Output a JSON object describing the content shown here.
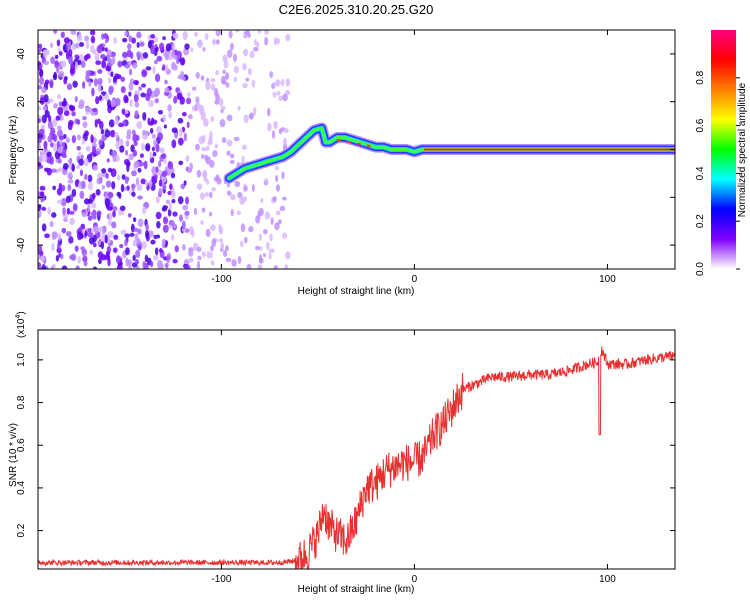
{
  "title": "C2E6.2025.310.20.25.G20",
  "chart_data": [
    {
      "type": "heatmap",
      "xlabel": "Height of straight line (km)",
      "ylabel": "Frequency (Hz)",
      "xlim": [
        -195,
        135
      ],
      "ylim": [
        -50,
        50
      ],
      "xticks": [
        -100,
        0,
        100
      ],
      "xtick_labels": [
        "-100",
        "0",
        "100"
      ],
      "yticks": [
        -40,
        -20,
        0,
        20,
        40
      ],
      "ytick_labels": [
        "-40",
        "-20",
        "0",
        "20",
        "40"
      ],
      "colorbar": {
        "label": "Normalized spectral amplitude",
        "range": [
          0,
          1
        ],
        "ticks": [
          0.0,
          0.2,
          0.4,
          0.6,
          0.8
        ],
        "tick_labels": [
          "0.0",
          "0.2",
          "0.4",
          "0.6",
          "0.8"
        ],
        "colors": [
          "#ffffff",
          "#8000ff",
          "#0000ff",
          "#00ffff",
          "#00ff00",
          "#ffff00",
          "#ff8000",
          "#ff0000",
          "#ff0080"
        ]
      },
      "ridge": {
        "name": "Doppler trace",
        "x": [
          -96,
          -92,
          -88,
          -84,
          -80,
          -76,
          -72,
          -68,
          -64,
          -60,
          -56,
          -52,
          -48,
          -46,
          -44,
          -42,
          -40,
          -36,
          -32,
          -28,
          -24,
          -20,
          -16,
          -12,
          -8,
          -4,
          0,
          4,
          10,
          20,
          40,
          60,
          80,
          100,
          120,
          135
        ],
        "y": [
          -12,
          -10,
          -8,
          -7,
          -6,
          -5,
          -4,
          -3,
          -1,
          2,
          5,
          8,
          9,
          3,
          3,
          4,
          5,
          5,
          4,
          3,
          2,
          1,
          1,
          0,
          0,
          0,
          -1,
          0,
          0,
          0,
          0,
          0,
          0,
          0,
          0,
          0
        ]
      }
    },
    {
      "type": "line",
      "xlabel": "Height of straight line (km)",
      "ylabel": "SNR (10 * v/v)",
      "exponent_label": "(x10",
      "exponent_power": "4",
      "exponent_close": ")",
      "xlim": [
        -195,
        135
      ],
      "ylim": [
        0.02,
        1.14
      ],
      "xticks": [
        -100,
        0,
        100
      ],
      "xtick_labels": [
        "-100",
        "0",
        "100"
      ],
      "yticks": [
        0.2,
        0.4,
        0.6,
        0.8,
        1.0
      ],
      "ytick_labels": [
        "0.2",
        "0.4",
        "0.6",
        "0.8",
        "1.0"
      ],
      "series": [
        {
          "name": "SNR",
          "color": "#e83030",
          "x": [
            -195,
            -150,
            -100,
            -70,
            -60,
            -55,
            -50,
            -47,
            -44,
            -40,
            -35,
            -30,
            -25,
            -20,
            -15,
            -10,
            -5,
            0,
            5,
            10,
            15,
            20,
            25,
            30,
            40,
            50,
            60,
            70,
            80,
            90,
            95,
            97,
            100,
            110,
            120,
            135
          ],
          "y": [
            0.05,
            0.05,
            0.05,
            0.05,
            0.06,
            0.1,
            0.18,
            0.3,
            0.22,
            0.18,
            0.15,
            0.25,
            0.4,
            0.42,
            0.48,
            0.5,
            0.52,
            0.52,
            0.55,
            0.65,
            0.7,
            0.78,
            0.86,
            0.88,
            0.92,
            0.92,
            0.93,
            0.93,
            0.95,
            0.98,
            0.99,
            1.05,
            0.98,
            0.98,
            1.0,
            1.02
          ]
        }
      ],
      "annotations": [
        {
          "x": -44,
          "y": 0.48,
          "text": ""
        },
        {
          "x": 96,
          "y": 0.65,
          "text": ""
        }
      ]
    }
  ]
}
